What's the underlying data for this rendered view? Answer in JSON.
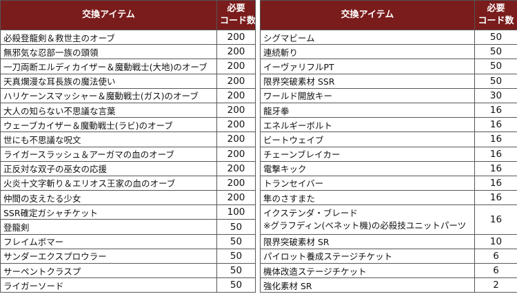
{
  "tables": [
    {
      "header": {
        "item": "交換アイテム",
        "code": [
          "必要",
          "コード数"
        ]
      },
      "rows": [
        {
          "item": "必殺登龍剣＆救世主のオーブ",
          "code": 200
        },
        {
          "item": "無邪気な忍部一族の頭領",
          "code": 200
        },
        {
          "item": "一刀両断エルディカイザー＆魔動戦士(大地)のオーブ",
          "code": 200
        },
        {
          "item": "天真爛漫な耳長族の魔法使い",
          "code": 200
        },
        {
          "item": "ハリケーンスマッシャー＆魔動戦士(ガス)のオーブ",
          "code": 200
        },
        {
          "item": "大人の知らない不思議な言葉",
          "code": 200
        },
        {
          "item": "ウェーブカイザー＆魔動戦士(ラビ)のオーブ",
          "code": 200
        },
        {
          "item": "世にも不思議な呪文",
          "code": 200
        },
        {
          "item": "ライガースラッシュ＆アーガマの血のオーブ",
          "code": 200
        },
        {
          "item": "正反対な双子の巫女の応援",
          "code": 200
        },
        {
          "item": "火炎十文字斬り＆エリオス王家の血のオーブ",
          "code": 200
        },
        {
          "item": "仲間の支えたる少女",
          "code": 200
        },
        {
          "item": "SSR確定ガシャチケット",
          "code": 100
        },
        {
          "item": "登龍剣",
          "code": 50
        },
        {
          "item": "フレイムボマー",
          "code": 50
        },
        {
          "item": "サンダーエクスプロウラー",
          "code": 50
        },
        {
          "item": "サーペントクラスプ",
          "code": 50
        },
        {
          "item": "ライガーソード",
          "code": 50
        }
      ]
    },
    {
      "header": {
        "item": "交換アイテム",
        "code": [
          "必要",
          "コード数"
        ]
      },
      "rows": [
        {
          "item": "シグマビーム",
          "code": 50
        },
        {
          "item": "連続斬り",
          "code": 50
        },
        {
          "item": "イーヴァリフルPT",
          "code": 50
        },
        {
          "item": "限界突破素材 SSR",
          "code": 50
        },
        {
          "item": "ワールド開放キー",
          "code": 30
        },
        {
          "item": "龍牙拳",
          "code": 16
        },
        {
          "item": "エネルギーボルト",
          "code": 16
        },
        {
          "item": "ビートウェイブ",
          "code": 16
        },
        {
          "item": "チェーンブレイカー",
          "code": 16
        },
        {
          "item": "電撃キック",
          "code": 16
        },
        {
          "item": "トランセイバー",
          "code": 16
        },
        {
          "item": "隼のさすまた",
          "code": 16
        },
        {
          "item": [
            "イクステンダ・ブレード",
            "※グラフディン(ベネット機)の必殺技ユニットパーツ"
          ],
          "code": 16
        },
        {
          "item": "限界突破素材 SR",
          "code": 10
        },
        {
          "item": "パイロット養成ステージチケット",
          "code": 6
        },
        {
          "item": "機体改造ステージチケット",
          "code": 6
        },
        {
          "item": "強化素材 SR",
          "code": 2
        }
      ]
    }
  ]
}
